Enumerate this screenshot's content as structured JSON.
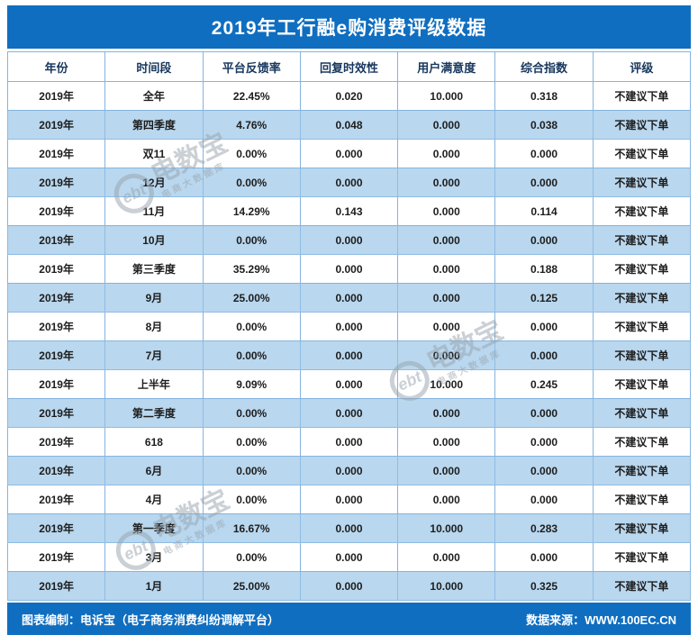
{
  "title": "2019年工行融e购消费评级数据",
  "chart_data": {
    "type": "table",
    "title": "2019年工行融e购消费评级数据",
    "columns": [
      "年份",
      "时间段",
      "平台反馈率",
      "回复时效性",
      "用户满意度",
      "综合指数",
      "评级"
    ],
    "rows": [
      [
        "2019年",
        "全年",
        "22.45%",
        "0.020",
        "10.000",
        "0.318",
        "不建议下单"
      ],
      [
        "2019年",
        "第四季度",
        "4.76%",
        "0.048",
        "0.000",
        "0.038",
        "不建议下单"
      ],
      [
        "2019年",
        "双11",
        "0.00%",
        "0.000",
        "0.000",
        "0.000",
        "不建议下单"
      ],
      [
        "2019年",
        "12月",
        "0.00%",
        "0.000",
        "0.000",
        "0.000",
        "不建议下单"
      ],
      [
        "2019年",
        "11月",
        "14.29%",
        "0.143",
        "0.000",
        "0.114",
        "不建议下单"
      ],
      [
        "2019年",
        "10月",
        "0.00%",
        "0.000",
        "0.000",
        "0.000",
        "不建议下单"
      ],
      [
        "2019年",
        "第三季度",
        "35.29%",
        "0.000",
        "0.000",
        "0.188",
        "不建议下单"
      ],
      [
        "2019年",
        "9月",
        "25.00%",
        "0.000",
        "0.000",
        "0.125",
        "不建议下单"
      ],
      [
        "2019年",
        "8月",
        "0.00%",
        "0.000",
        "0.000",
        "0.000",
        "不建议下单"
      ],
      [
        "2019年",
        "7月",
        "0.00%",
        "0.000",
        "0.000",
        "0.000",
        "不建议下单"
      ],
      [
        "2019年",
        "上半年",
        "9.09%",
        "0.000",
        "10.000",
        "0.245",
        "不建议下单"
      ],
      [
        "2019年",
        "第二季度",
        "0.00%",
        "0.000",
        "0.000",
        "0.000",
        "不建议下单"
      ],
      [
        "2019年",
        "618",
        "0.00%",
        "0.000",
        "0.000",
        "0.000",
        "不建议下单"
      ],
      [
        "2019年",
        "6月",
        "0.00%",
        "0.000",
        "0.000",
        "0.000",
        "不建议下单"
      ],
      [
        "2019年",
        "4月",
        "0.00%",
        "0.000",
        "0.000",
        "0.000",
        "不建议下单"
      ],
      [
        "2019年",
        "第一季度",
        "16.67%",
        "0.000",
        "10.000",
        "0.283",
        "不建议下单"
      ],
      [
        "2019年",
        "3月",
        "0.00%",
        "0.000",
        "0.000",
        "0.000",
        "不建议下单"
      ],
      [
        "2019年",
        "1月",
        "25.00%",
        "0.000",
        "10.000",
        "0.325",
        "不建议下单"
      ]
    ]
  },
  "footer": {
    "left": "图表编制：电诉宝（电子商务消费纠纷调解平台）",
    "right": "数据来源：WWW.100EC.CN"
  },
  "watermark": {
    "logo_text": "ebt",
    "brand": "电数宝",
    "subtitle": "电商大数据库"
  },
  "colors": {
    "primary_blue": "#0F6EC0",
    "row_alt_blue": "#B9D7EE",
    "border_blue": "#85B4DF",
    "header_text_navy": "#17375E",
    "watermark_gray": "#97A2AC"
  }
}
